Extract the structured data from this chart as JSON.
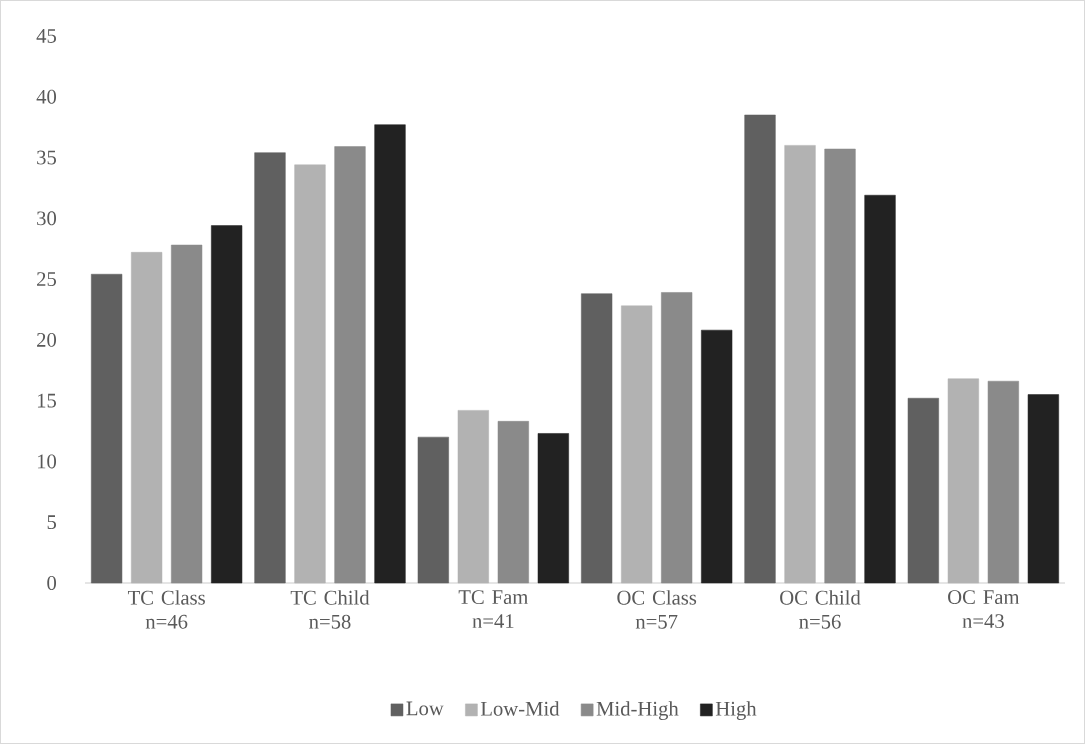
{
  "chart_data": {
    "type": "bar",
    "categories": [
      "TC Class n=46",
      "TC Child n=58",
      "TC Fam n=41",
      "OC Class n=57",
      "OC Child n=56",
      "OC Fam n=43"
    ],
    "series": [
      {
        "name": "Low",
        "color": "#606060",
        "values": [
          25.4,
          35.4,
          12.0,
          23.8,
          38.5,
          15.2
        ]
      },
      {
        "name": "Low-Mid",
        "color": "#b2b2b2",
        "values": [
          27.2,
          34.4,
          14.2,
          22.8,
          36.0,
          16.8
        ]
      },
      {
        "name": "Mid-High",
        "color": "#8a8a8a",
        "values": [
          27.8,
          35.9,
          13.3,
          23.9,
          35.7,
          16.6
        ]
      },
      {
        "name": "High",
        "color": "#222222",
        "values": [
          29.4,
          37.7,
          12.3,
          20.8,
          31.9,
          15.5
        ]
      }
    ],
    "ylim": [
      0,
      45
    ],
    "yticks": [
      0,
      5,
      10,
      15,
      20,
      25,
      30,
      35,
      40,
      45
    ],
    "legend": "bottom",
    "grid": false
  }
}
